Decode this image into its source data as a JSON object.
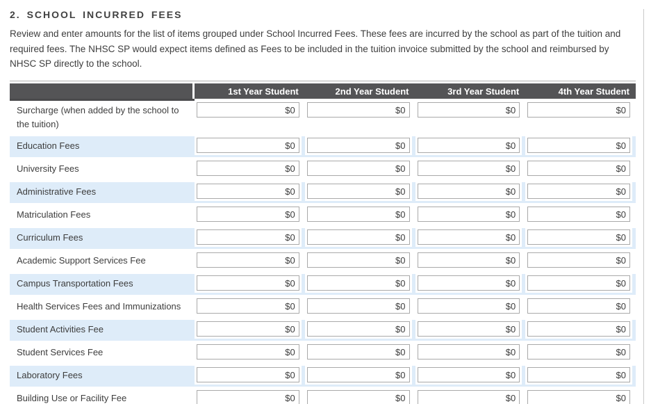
{
  "page": {
    "title": "2. SCHOOL INCURRED FEES",
    "description": "Review and enter amounts for the list of items grouped under School Incurred Fees. These fees are incurred by the school as part of the tuition and required fees. The NHSC SP would expect items defined as Fees to be included in the tuition invoice submitted by the school and reimbursed by NHSC SP directly to the school."
  },
  "fees_table": {
    "column_headers": [
      "1st Year Student",
      "2nd Year Student",
      "3rd Year Student",
      "4th Year Student"
    ],
    "rows": [
      {
        "label": "Surcharge (when added by the school to the tuition)",
        "values": [
          "$0",
          "$0",
          "$0",
          "$0"
        ]
      },
      {
        "label": "Education Fees",
        "values": [
          "$0",
          "$0",
          "$0",
          "$0"
        ]
      },
      {
        "label": "University Fees",
        "values": [
          "$0",
          "$0",
          "$0",
          "$0"
        ]
      },
      {
        "label": "Administrative Fees",
        "values": [
          "$0",
          "$0",
          "$0",
          "$0"
        ]
      },
      {
        "label": "Matriculation Fees",
        "values": [
          "$0",
          "$0",
          "$0",
          "$0"
        ]
      },
      {
        "label": "Curriculum Fees",
        "values": [
          "$0",
          "$0",
          "$0",
          "$0"
        ]
      },
      {
        "label": "Academic Support Services Fee",
        "values": [
          "$0",
          "$0",
          "$0",
          "$0"
        ]
      },
      {
        "label": "Campus Transportation Fees",
        "values": [
          "$0",
          "$0",
          "$0",
          "$0"
        ]
      },
      {
        "label": "Health Services Fees and Immunizations",
        "values": [
          "$0",
          "$0",
          "$0",
          "$0"
        ]
      },
      {
        "label": "Student Activities Fee",
        "values": [
          "$0",
          "$0",
          "$0",
          "$0"
        ]
      },
      {
        "label": "Student Services Fee",
        "values": [
          "$0",
          "$0",
          "$0",
          "$0"
        ]
      },
      {
        "label": "Laboratory Fees",
        "values": [
          "$0",
          "$0",
          "$0",
          "$0"
        ]
      },
      {
        "label": "Building Use or Facility Fee",
        "values": [
          "$0",
          "$0",
          "$0",
          "$0"
        ]
      }
    ]
  },
  "colors": {
    "table_header_bg": "#545456",
    "table_header_text": "#ffffff",
    "alt_row_bg": "#deecf9",
    "input_border": "#a9a9a9",
    "body_text": "#3d3d3d"
  }
}
